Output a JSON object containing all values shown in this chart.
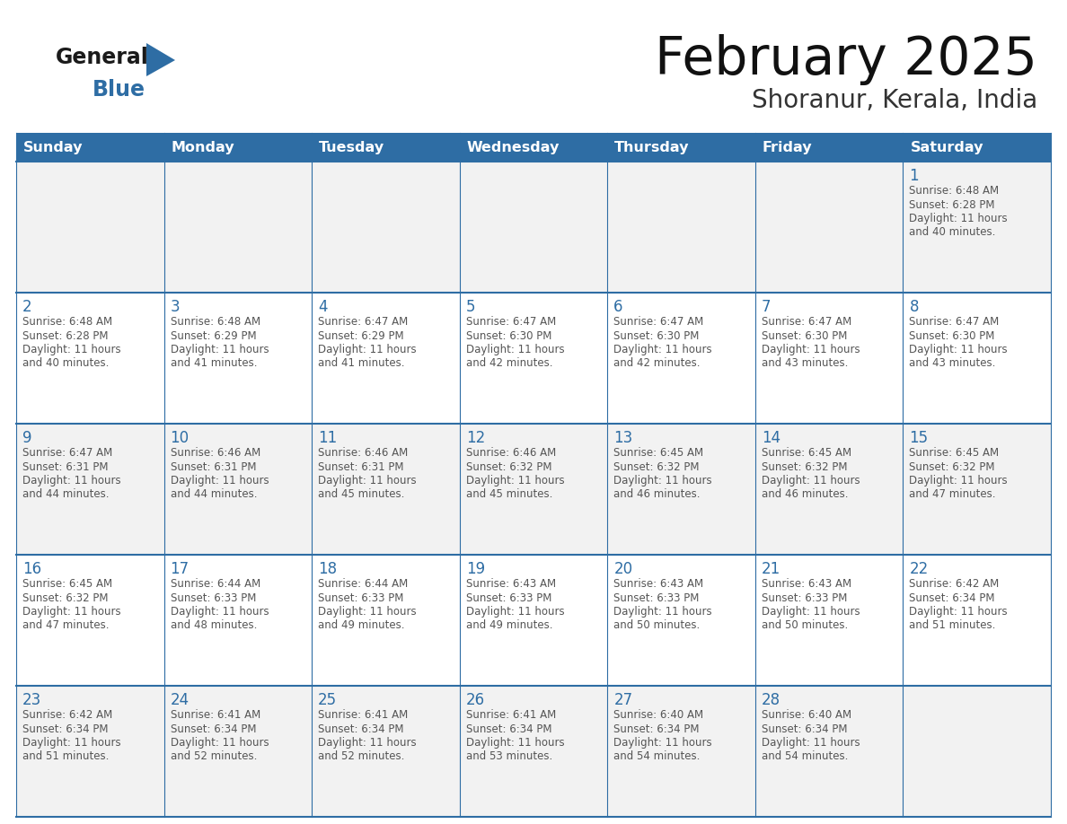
{
  "title": "February 2025",
  "subtitle": "Shoranur, Kerala, India",
  "days_of_week": [
    "Sunday",
    "Monday",
    "Tuesday",
    "Wednesday",
    "Thursday",
    "Friday",
    "Saturday"
  ],
  "header_bg": "#2E6DA4",
  "header_text": "#FFFFFF",
  "cell_border": "#2E6DA4",
  "day_num_color": "#2E6DA4",
  "info_text_color": "#555555",
  "bg_color": "#FFFFFF",
  "odd_row_bg": "#F2F2F2",
  "even_row_bg": "#FFFFFF",
  "logo_general_color": "#1a1a1a",
  "logo_blue_color": "#2E6DA4",
  "calendar_data": [
    [
      {
        "day": "",
        "sunrise": "",
        "sunset": "",
        "daylight": ""
      },
      {
        "day": "",
        "sunrise": "",
        "sunset": "",
        "daylight": ""
      },
      {
        "day": "",
        "sunrise": "",
        "sunset": "",
        "daylight": ""
      },
      {
        "day": "",
        "sunrise": "",
        "sunset": "",
        "daylight": ""
      },
      {
        "day": "",
        "sunrise": "",
        "sunset": "",
        "daylight": ""
      },
      {
        "day": "",
        "sunrise": "",
        "sunset": "",
        "daylight": ""
      },
      {
        "day": "1",
        "sunrise": "6:48 AM",
        "sunset": "6:28 PM",
        "daylight": "11 hours and 40 minutes."
      }
    ],
    [
      {
        "day": "2",
        "sunrise": "6:48 AM",
        "sunset": "6:28 PM",
        "daylight": "11 hours and 40 minutes."
      },
      {
        "day": "3",
        "sunrise": "6:48 AM",
        "sunset": "6:29 PM",
        "daylight": "11 hours and 41 minutes."
      },
      {
        "day": "4",
        "sunrise": "6:47 AM",
        "sunset": "6:29 PM",
        "daylight": "11 hours and 41 minutes."
      },
      {
        "day": "5",
        "sunrise": "6:47 AM",
        "sunset": "6:30 PM",
        "daylight": "11 hours and 42 minutes."
      },
      {
        "day": "6",
        "sunrise": "6:47 AM",
        "sunset": "6:30 PM",
        "daylight": "11 hours and 42 minutes."
      },
      {
        "day": "7",
        "sunrise": "6:47 AM",
        "sunset": "6:30 PM",
        "daylight": "11 hours and 43 minutes."
      },
      {
        "day": "8",
        "sunrise": "6:47 AM",
        "sunset": "6:30 PM",
        "daylight": "11 hours and 43 minutes."
      }
    ],
    [
      {
        "day": "9",
        "sunrise": "6:47 AM",
        "sunset": "6:31 PM",
        "daylight": "11 hours and 44 minutes."
      },
      {
        "day": "10",
        "sunrise": "6:46 AM",
        "sunset": "6:31 PM",
        "daylight": "11 hours and 44 minutes."
      },
      {
        "day": "11",
        "sunrise": "6:46 AM",
        "sunset": "6:31 PM",
        "daylight": "11 hours and 45 minutes."
      },
      {
        "day": "12",
        "sunrise": "6:46 AM",
        "sunset": "6:32 PM",
        "daylight": "11 hours and 45 minutes."
      },
      {
        "day": "13",
        "sunrise": "6:45 AM",
        "sunset": "6:32 PM",
        "daylight": "11 hours and 46 minutes."
      },
      {
        "day": "14",
        "sunrise": "6:45 AM",
        "sunset": "6:32 PM",
        "daylight": "11 hours and 46 minutes."
      },
      {
        "day": "15",
        "sunrise": "6:45 AM",
        "sunset": "6:32 PM",
        "daylight": "11 hours and 47 minutes."
      }
    ],
    [
      {
        "day": "16",
        "sunrise": "6:45 AM",
        "sunset": "6:32 PM",
        "daylight": "11 hours and 47 minutes."
      },
      {
        "day": "17",
        "sunrise": "6:44 AM",
        "sunset": "6:33 PM",
        "daylight": "11 hours and 48 minutes."
      },
      {
        "day": "18",
        "sunrise": "6:44 AM",
        "sunset": "6:33 PM",
        "daylight": "11 hours and 49 minutes."
      },
      {
        "day": "19",
        "sunrise": "6:43 AM",
        "sunset": "6:33 PM",
        "daylight": "11 hours and 49 minutes."
      },
      {
        "day": "20",
        "sunrise": "6:43 AM",
        "sunset": "6:33 PM",
        "daylight": "11 hours and 50 minutes."
      },
      {
        "day": "21",
        "sunrise": "6:43 AM",
        "sunset": "6:33 PM",
        "daylight": "11 hours and 50 minutes."
      },
      {
        "day": "22",
        "sunrise": "6:42 AM",
        "sunset": "6:34 PM",
        "daylight": "11 hours and 51 minutes."
      }
    ],
    [
      {
        "day": "23",
        "sunrise": "6:42 AM",
        "sunset": "6:34 PM",
        "daylight": "11 hours and 51 minutes."
      },
      {
        "day": "24",
        "sunrise": "6:41 AM",
        "sunset": "6:34 PM",
        "daylight": "11 hours and 52 minutes."
      },
      {
        "day": "25",
        "sunrise": "6:41 AM",
        "sunset": "6:34 PM",
        "daylight": "11 hours and 52 minutes."
      },
      {
        "day": "26",
        "sunrise": "6:41 AM",
        "sunset": "6:34 PM",
        "daylight": "11 hours and 53 minutes."
      },
      {
        "day": "27",
        "sunrise": "6:40 AM",
        "sunset": "6:34 PM",
        "daylight": "11 hours and 54 minutes."
      },
      {
        "day": "28",
        "sunrise": "6:40 AM",
        "sunset": "6:34 PM",
        "daylight": "11 hours and 54 minutes."
      },
      {
        "day": "",
        "sunrise": "",
        "sunset": "",
        "daylight": ""
      }
    ]
  ]
}
